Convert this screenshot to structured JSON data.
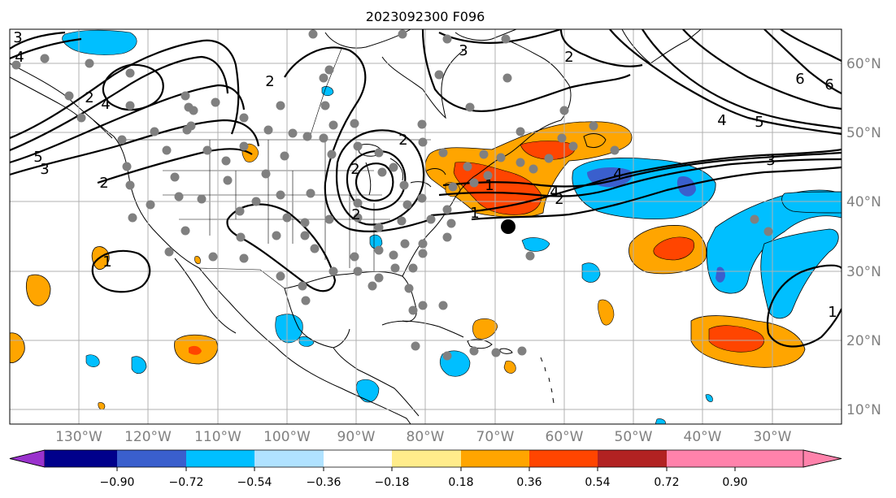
{
  "title": "2023092300 F096",
  "lon_labels": [
    "130°W",
    "120°W",
    "110°W",
    "100°W",
    "90°W",
    "80°W",
    "70°W",
    "60°W",
    "50°W",
    "40°W",
    "30°W"
  ],
  "lat_labels": [
    "60°N",
    "50°N",
    "40°N",
    "30°N",
    "20°N",
    "10°N"
  ],
  "colorbar": {
    "ticks": [
      "−0.90",
      "−0.72",
      "−0.54",
      "−0.36",
      "−0.18",
      "0.18",
      "0.36",
      "0.54",
      "0.72",
      "0.90"
    ],
    "colors": [
      "#9a32cd",
      "#00008b",
      "#3a5fcd",
      "#00bfff",
      "#b0e2ff",
      "#ffffff",
      "#ffec8b",
      "#ffa500",
      "#ff4500",
      "#b22222",
      "#ff82ab"
    ],
    "extend": "both"
  },
  "contour_labels": [
    "3",
    "4",
    "4",
    "5",
    "3",
    "2",
    "2",
    "2",
    "2",
    "3",
    "2",
    "1",
    "1",
    "2",
    "1",
    "4",
    "2",
    "4",
    "5",
    "6",
    "6",
    "4",
    "3",
    "1",
    "2"
  ],
  "colors": {
    "marker_dot": "#808080",
    "storm_center": "#000000",
    "grid": "#b0b0b0",
    "axis_label": "#808080"
  }
}
